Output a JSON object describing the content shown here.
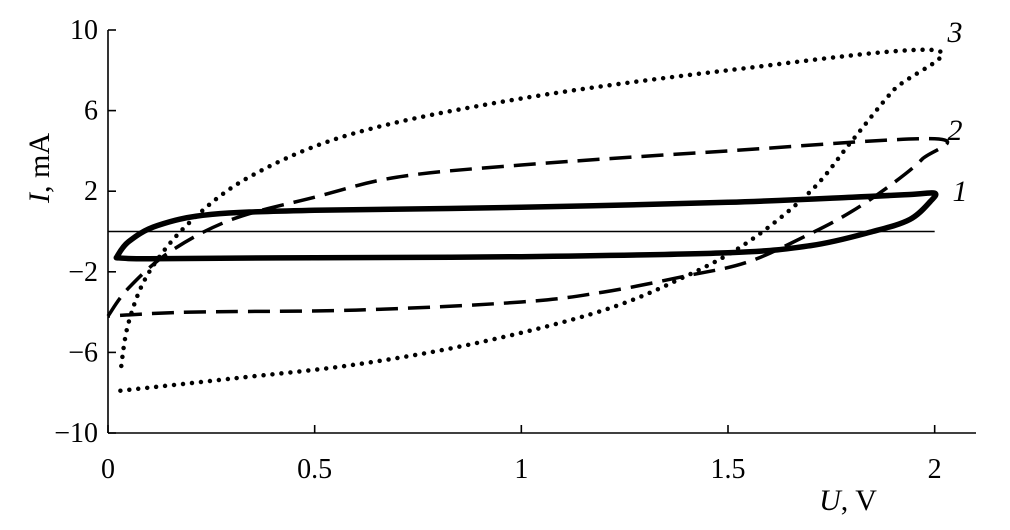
{
  "chart_data": {
    "type": "line",
    "title": "",
    "xlabel_var": "U",
    "xlabel_unit": ", V",
    "ylabel_var": "I",
    "ylabel_unit": ", mA",
    "xlim": [
      0,
      2.1
    ],
    "ylim": [
      -10,
      10
    ],
    "x_ticks": [
      {
        "value": 0,
        "label": "0"
      },
      {
        "value": 0.5,
        "label": "0.5"
      },
      {
        "value": 1,
        "label": "1"
      },
      {
        "value": 1.5,
        "label": "1.5"
      },
      {
        "value": 2,
        "label": "2"
      }
    ],
    "y_ticks": [
      {
        "value": 10,
        "label": "10"
      },
      {
        "value": 6,
        "label": "6"
      },
      {
        "value": 2,
        "label": "2"
      },
      {
        "value": -2,
        "label": "−2"
      },
      {
        "value": -6,
        "label": "−6"
      },
      {
        "value": -10,
        "label": "−10"
      }
    ],
    "zero_line": true,
    "grid": false,
    "legend": "none",
    "series": [
      {
        "label": "1",
        "style": "solid",
        "color": "#000000",
        "points": [
          [
            0.02,
            -1.3
          ],
          [
            0.05,
            -0.5
          ],
          [
            0.12,
            0.3
          ],
          [
            0.25,
            0.85
          ],
          [
            0.5,
            1.05
          ],
          [
            1.0,
            1.2
          ],
          [
            1.5,
            1.45
          ],
          [
            1.8,
            1.7
          ],
          [
            1.95,
            1.85
          ],
          [
            2.0,
            1.9
          ],
          [
            1.99,
            1.5
          ],
          [
            1.94,
            0.6
          ],
          [
            1.85,
            0.0
          ],
          [
            1.7,
            -0.7
          ],
          [
            1.5,
            -1.05
          ],
          [
            1.0,
            -1.25
          ],
          [
            0.5,
            -1.3
          ],
          [
            0.1,
            -1.35
          ],
          [
            0.02,
            -1.3
          ]
        ]
      },
      {
        "label": "2",
        "style": "dashed",
        "color": "#000000",
        "points": [
          [
            0.0,
            -4.2
          ],
          [
            0.05,
            -2.8
          ],
          [
            0.15,
            -1.0
          ],
          [
            0.3,
            0.6
          ],
          [
            0.5,
            1.7
          ],
          [
            0.7,
            2.7
          ],
          [
            1.0,
            3.3
          ],
          [
            1.5,
            4.0
          ],
          [
            2.0,
            4.6
          ],
          [
            1.97,
            3.6
          ],
          [
            1.9,
            2.4
          ],
          [
            1.8,
            1.0
          ],
          [
            1.7,
            -0.1
          ],
          [
            1.55,
            -1.5
          ],
          [
            1.4,
            -2.2
          ],
          [
            1.2,
            -3.0
          ],
          [
            1.0,
            -3.5
          ],
          [
            0.6,
            -3.9
          ],
          [
            0.2,
            -4.0
          ],
          [
            0.0,
            -4.2
          ]
        ]
      },
      {
        "label": "3",
        "style": "dotted",
        "color": "#000000",
        "points": [
          [
            0.03,
            -7.9
          ],
          [
            0.3,
            -7.3
          ],
          [
            0.6,
            -6.6
          ],
          [
            0.9,
            -5.5
          ],
          [
            1.2,
            -3.9
          ],
          [
            1.4,
            -2.2
          ],
          [
            1.55,
            -0.5
          ],
          [
            1.7,
            2.0
          ],
          [
            1.8,
            4.5
          ],
          [
            1.9,
            7.0
          ],
          [
            2.0,
            9.0
          ],
          [
            1.5,
            8.0
          ],
          [
            1.0,
            6.6
          ],
          [
            0.6,
            4.9
          ],
          [
            0.35,
            2.8
          ],
          [
            0.2,
            0.5
          ],
          [
            0.1,
            -2.0
          ],
          [
            0.05,
            -4.5
          ],
          [
            0.03,
            -7.0
          ]
        ]
      }
    ]
  }
}
